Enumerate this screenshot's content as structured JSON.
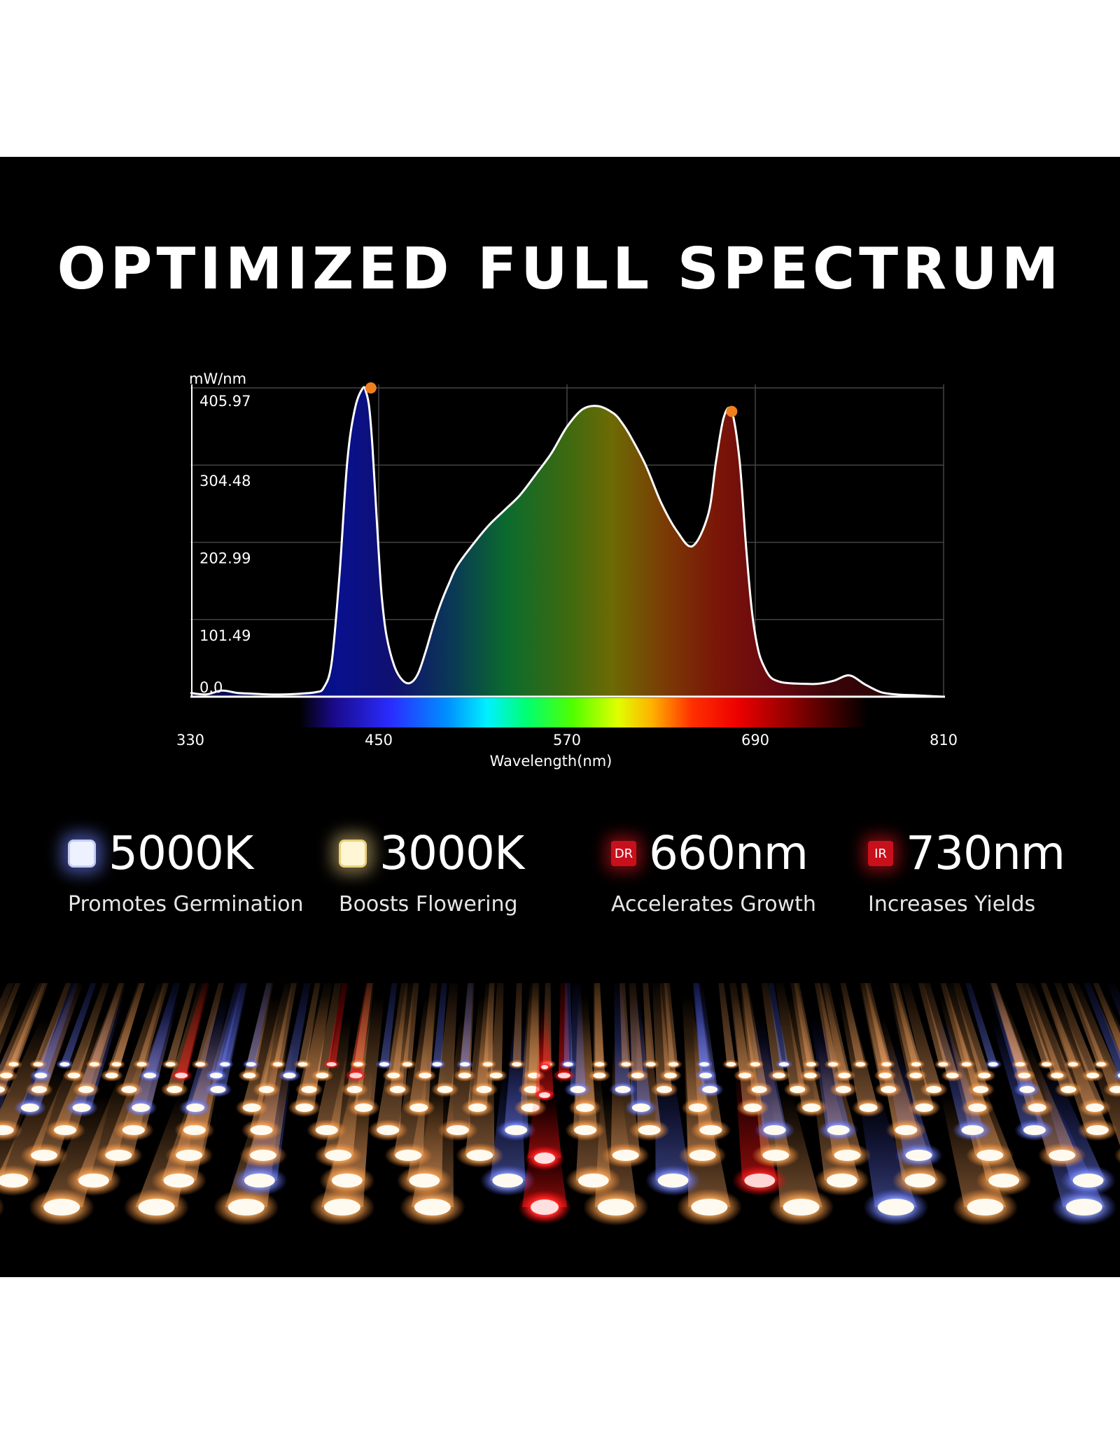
{
  "headline": "OPTIMIZED FULL SPECTRUM",
  "chart_data": {
    "type": "area",
    "title": "",
    "xlabel": "Wavelength(nm)",
    "ylabel": "mW/nm",
    "xlim": [
      330,
      810
    ],
    "ylim": [
      0,
      405.97
    ],
    "xticks": [
      "330",
      "450",
      "570",
      "690",
      "810"
    ],
    "yticks": [
      "0.0",
      "101.49",
      "202.99",
      "304.48",
      "405.97"
    ],
    "grid": true,
    "series": [
      {
        "x": [
          330,
          340,
          350,
          360,
          370,
          380,
          390,
          400,
          410,
          415,
          420,
          425,
          430,
          435,
          440,
          442,
          444,
          446,
          448,
          450,
          452,
          455,
          460,
          465,
          470,
          475,
          480,
          485,
          490,
          495,
          500,
          510,
          520,
          530,
          540,
          550,
          560,
          570,
          580,
          590,
          600,
          605,
          610,
          620,
          630,
          640,
          650,
          660,
          665,
          670,
          675,
          680,
          684,
          688,
          692,
          696,
          700,
          705,
          710,
          720,
          730,
          740,
          750,
          760,
          770,
          780,
          790,
          800,
          810
        ],
        "y": [
          5,
          3,
          8,
          5,
          4,
          3,
          3,
          4,
          6,
          12,
          45,
          160,
          310,
          380,
          405.97,
          400,
          380,
          330,
          260,
          190,
          130,
          80,
          40,
          22,
          18,
          30,
          60,
          95,
          125,
          150,
          172,
          200,
          225,
          245,
          265,
          292,
          320,
          355,
          378,
          382,
          372,
          360,
          344,
          305,
          255,
          218,
          198,
          240,
          310,
          368,
          375,
          310,
          200,
          110,
          60,
          38,
          25,
          20,
          18,
          17,
          17,
          21,
          28,
          16,
          6,
          3,
          2,
          1,
          0
        ]
      }
    ],
    "markers": [
      {
        "x": 445,
        "y": 405.97,
        "color": "#f07f1e"
      },
      {
        "x": 675,
        "y": 375,
        "color": "#f07f1e"
      }
    ],
    "colors": {
      "curve": "#ffffff",
      "grid": "#444444",
      "marker": "#f07f1e"
    }
  },
  "features": [
    {
      "value": "5000K",
      "caption": "Promotes Germination",
      "icon": "cool-white-led-icon"
    },
    {
      "value": "3000K",
      "caption": "Boosts Flowering",
      "icon": "warm-white-led-icon"
    },
    {
      "value": "660nm",
      "caption": "Accelerates Growth",
      "icon": "deep-red-led-icon",
      "badge": "DR"
    },
    {
      "value": "730nm",
      "caption": "Increases Yields",
      "icon": "infrared-led-icon",
      "badge": "IR"
    }
  ],
  "colors": {
    "background": "#000000",
    "page": "#ffffff",
    "text": "#ffffff",
    "red_led": "#c8101c"
  }
}
